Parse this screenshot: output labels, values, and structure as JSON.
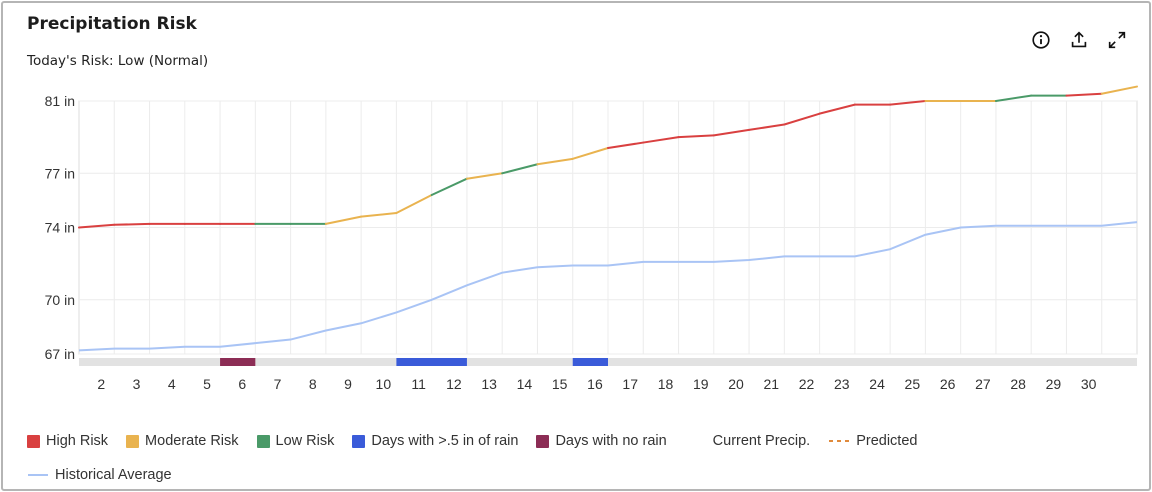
{
  "header": {
    "title": "Precipitation Risk",
    "subtitle": "Today's Risk: Low (Normal)"
  },
  "toolbar": {
    "info_icon": "info-icon",
    "export_icon": "upload-icon",
    "expand_icon": "expand-icon"
  },
  "colors": {
    "high": "#d94040",
    "moderate": "#e9b34f",
    "low": "#4a9a68",
    "heavy_rain": "#3a5bd9",
    "no_rain": "#8c2d55",
    "historical": "#a9c4f5",
    "predicted": "#e08a3c",
    "timeline": "#e2e2e2",
    "grid": "#ececec"
  },
  "legend": {
    "items": [
      {
        "key": "high",
        "label": "High Risk",
        "kind": "swatch"
      },
      {
        "key": "moderate",
        "label": "Moderate Risk",
        "kind": "swatch"
      },
      {
        "key": "low",
        "label": "Low Risk",
        "kind": "swatch"
      },
      {
        "key": "heavy_rain",
        "label": "Days with >.5 in of rain",
        "kind": "swatch"
      },
      {
        "key": "no_rain",
        "label": "Days with no rain",
        "kind": "swatch"
      },
      {
        "key": "current",
        "label": "Current Precip.",
        "kind": "gradient-line"
      },
      {
        "key": "predicted",
        "label": "Predicted",
        "kind": "dashed-line"
      },
      {
        "key": "historical",
        "label": "Historical Average",
        "kind": "line"
      }
    ]
  },
  "chart_data": {
    "type": "line",
    "x": [
      1,
      2,
      3,
      4,
      5,
      6,
      7,
      8,
      9,
      10,
      11,
      12,
      13,
      14,
      15,
      16,
      17,
      18,
      19,
      20,
      21,
      22,
      23,
      24,
      25,
      26,
      27,
      28,
      29,
      30,
      31
    ],
    "x_tick_labels": [
      "2",
      "3",
      "4",
      "5",
      "6",
      "7",
      "8",
      "9",
      "10",
      "11",
      "12",
      "13",
      "14",
      "15",
      "16",
      "17",
      "18",
      "19",
      "20",
      "21",
      "22",
      "23",
      "24",
      "25",
      "26",
      "27",
      "28",
      "29",
      "30"
    ],
    "y_ticks": [
      67,
      70,
      74,
      77,
      81
    ],
    "y_tick_labels": [
      "67 in",
      "70 in",
      "74 in",
      "77 in",
      "81 in"
    ],
    "ylim": [
      67,
      81
    ],
    "grid": true,
    "series": [
      {
        "name": "Current Precip.",
        "kind": "risk-colored-line",
        "values": [
          74.0,
          74.15,
          74.2,
          74.2,
          74.2,
          74.2,
          74.2,
          74.2,
          74.6,
          74.8,
          75.8,
          76.7,
          77.0,
          77.5,
          77.8,
          78.4,
          78.7,
          79.0,
          79.1,
          79.4,
          79.7,
          80.3,
          80.8,
          80.8,
          81.0,
          81.0,
          81.0,
          81.3,
          81.3,
          81.4,
          81.8
        ],
        "segment_risk": [
          "high",
          "high",
          "high",
          "high",
          "high",
          "low",
          "low",
          "moderate",
          "moderate",
          "moderate",
          "low",
          "moderate",
          "low",
          "moderate",
          "moderate",
          "high",
          "high",
          "high",
          "high",
          "high",
          "high",
          "high",
          "high",
          "high",
          "moderate",
          "moderate",
          "low",
          "low",
          "high",
          "moderate"
        ]
      },
      {
        "name": "Historical Average",
        "kind": "line",
        "values": [
          67.2,
          67.3,
          67.3,
          67.4,
          67.4,
          67.6,
          67.8,
          68.3,
          68.7,
          69.3,
          70.0,
          70.8,
          71.5,
          71.8,
          71.9,
          71.9,
          72.1,
          72.1,
          72.1,
          72.2,
          72.4,
          72.4,
          72.4,
          72.8,
          73.6,
          74.0,
          74.1,
          74.1,
          74.1,
          74.1,
          74.3
        ]
      }
    ],
    "timeline_markers": [
      {
        "type": "no_rain",
        "start_day": 5,
        "end_day": 6
      },
      {
        "type": "heavy_rain",
        "start_day": 10,
        "end_day": 12
      },
      {
        "type": "heavy_rain",
        "start_day": 15,
        "end_day": 16
      }
    ]
  }
}
